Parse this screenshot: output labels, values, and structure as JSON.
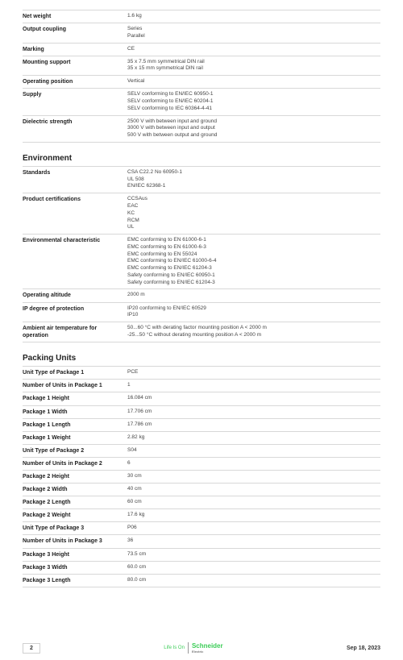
{
  "general": [
    {
      "label": "Net weight",
      "values": [
        "1.6 kg"
      ]
    },
    {
      "label": "Output coupling",
      "values": [
        "Series",
        "Parallel"
      ]
    },
    {
      "label": "Marking",
      "values": [
        "CE"
      ]
    },
    {
      "label": "Mounting support",
      "values": [
        "35 x 7.5 mm symmetrical DIN rail",
        "35 x 15 mm symmetrical DIN rail"
      ]
    },
    {
      "label": "Operating position",
      "values": [
        "Vertical"
      ]
    },
    {
      "label": "Supply",
      "values": [
        "SELV conforming to EN/IEC 60950-1",
        "SELV conforming to EN/IEC 60204-1",
        "SELV conforming to IEC 60364-4-41"
      ]
    },
    {
      "label": "Dielectric strength",
      "values": [
        "2500 V with between input and ground",
        "3000 V with between input and output",
        "500 V with between output and ground"
      ]
    }
  ],
  "environment_title": "Environment",
  "environment": [
    {
      "label": "Standards",
      "values": [
        "CSA C22.2 No 60950-1",
        "UL 508",
        "EN/IEC 62368-1"
      ]
    },
    {
      "label": "Product certifications",
      "values": [
        "CCSAus",
        "EAC",
        "KC",
        "RCM",
        "UL"
      ]
    },
    {
      "label": "Environmental characteristic",
      "values": [
        "EMC conforming to EN 61000-6-1",
        "EMC conforming to EN 61000-6-3",
        "EMC conforming to EN 55024",
        "EMC conforming to EN/IEC 61000-6-4",
        "EMC conforming to EN/IEC 61204-3",
        "Safety conforming to EN/IEC 60950-1",
        "Safety conforming to EN/IEC 61204-3"
      ]
    },
    {
      "label": "Operating altitude",
      "values": [
        "2000 m"
      ]
    },
    {
      "label": "IP degree of protection",
      "values": [
        "IP20 conforming to EN/IEC 60529",
        "IP10"
      ]
    },
    {
      "label": "Ambient air temperature for operation",
      "values": [
        "50...60 °C with derating factor mounting position A < 2000 m",
        "-25...50 °C without derating mounting position A < 2000 m"
      ]
    }
  ],
  "packing_title": "Packing Units",
  "packing": [
    {
      "label": "Unit Type of Package 1",
      "values": [
        "PCE"
      ]
    },
    {
      "label": "Number of Units in Package 1",
      "values": [
        "1"
      ]
    },
    {
      "label": "Package 1 Height",
      "values": [
        "16.084 cm"
      ]
    },
    {
      "label": "Package 1 Width",
      "values": [
        "17.706 cm"
      ]
    },
    {
      "label": "Package 1 Length",
      "values": [
        "17.786 cm"
      ]
    },
    {
      "label": "Package 1 Weight",
      "values": [
        "2.82 kg"
      ]
    },
    {
      "label": "Unit Type of Package 2",
      "values": [
        "S04"
      ]
    },
    {
      "label": "Number of Units in Package 2",
      "values": [
        "6"
      ]
    },
    {
      "label": "Package 2 Height",
      "values": [
        "30 cm"
      ]
    },
    {
      "label": "Package 2 Width",
      "values": [
        "40 cm"
      ]
    },
    {
      "label": "Package 2 Length",
      "values": [
        "60 cm"
      ]
    },
    {
      "label": "Package 2 Weight",
      "values": [
        "17.6 kg"
      ]
    },
    {
      "label": "Unit Type of Package 3",
      "values": [
        "P06"
      ]
    },
    {
      "label": "Number of Units in Package 3",
      "values": [
        "36"
      ]
    },
    {
      "label": "Package 3 Height",
      "values": [
        "73.5 cm"
      ]
    },
    {
      "label": "Package 3 Width",
      "values": [
        "60.0 cm"
      ]
    },
    {
      "label": "Package 3 Length",
      "values": [
        "80.0 cm"
      ]
    }
  ],
  "footer": {
    "page_num": "2",
    "brand_small": "Life Is On",
    "brand_name": "Schneider",
    "brand_sub": "Electric",
    "date": "Sep 18, 2023"
  }
}
